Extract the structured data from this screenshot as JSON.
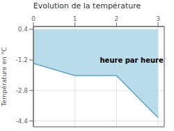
{
  "chart_data": {
    "type": "area",
    "title": "Evolution de la température",
    "ylabel": "Température en °C",
    "annotations": [
      {
        "text": "heure par heure",
        "x": 1.6,
        "y": -1.1
      }
    ],
    "x": [
      0,
      1,
      2,
      3
    ],
    "values": [
      -1.38,
      -2.02,
      -2.02,
      -4.22
    ],
    "fill_top": 0.4,
    "color": "#55aacc",
    "fill_color": "#b8dcea",
    "xlim": [
      0,
      3.15
    ],
    "ylim": [
      -4.7,
      0.55
    ],
    "xticks": [
      0,
      1,
      2,
      3
    ],
    "yticks": [
      0.4,
      -1.2,
      -2.8,
      -4.4
    ],
    "grid": true
  }
}
